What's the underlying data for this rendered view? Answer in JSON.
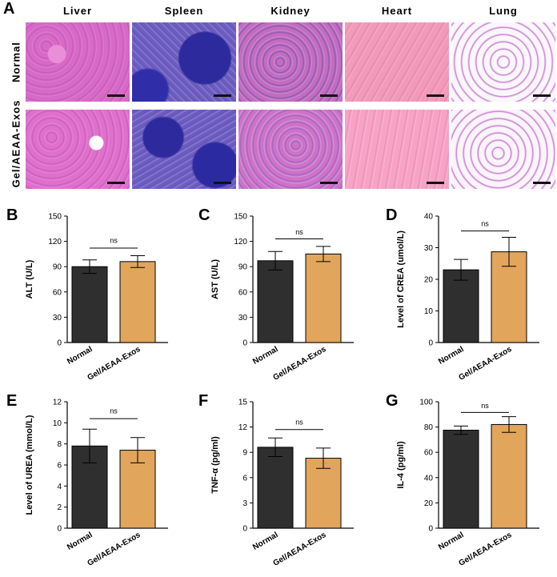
{
  "panel_labels": [
    "A",
    "B",
    "C",
    "D",
    "E",
    "F",
    "G"
  ],
  "histology": {
    "organs": [
      "Liver",
      "Spleen",
      "Kidney",
      "Heart",
      "Lung"
    ],
    "rows": [
      "Normal",
      "Gel/AEAA-Exos"
    ],
    "tile_colors": {
      "Liver": "#d970c8",
      "Spleen": "#5a4fb8",
      "Kidney": "#c873c4",
      "Heart": "#f08fb4",
      "Lung": "#f3e9f3"
    }
  },
  "colors": {
    "normal": "#2f2f2f",
    "treated": "#e2a55c"
  },
  "chart_data": [
    {
      "type": "bar",
      "panel": "B",
      "categories": [
        "Normal",
        "Gel/AEAA-Exos"
      ],
      "values": [
        90,
        96
      ],
      "errors": [
        8,
        7
      ],
      "ylabel": "ALT (U/L)",
      "ylim": [
        0,
        150
      ],
      "ticks": [
        0,
        30,
        60,
        90,
        120,
        150
      ],
      "annotation": "ns",
      "sig_y": 112,
      "sig_label_y": 118
    },
    {
      "type": "bar",
      "panel": "C",
      "categories": [
        "Normal",
        "Gel/AEAA-Exos"
      ],
      "values": [
        97,
        105
      ],
      "errors": [
        11,
        9
      ],
      "ylabel": "AST (U/L)",
      "ylim": [
        0,
        150
      ],
      "ticks": [
        0,
        30,
        60,
        90,
        120,
        150
      ],
      "annotation": "ns",
      "sig_y": 123,
      "sig_label_y": 128
    },
    {
      "type": "bar",
      "panel": "D",
      "categories": [
        "Normal",
        "Gel/AEAA-Exos"
      ],
      "values": [
        23,
        28.7
      ],
      "errors": [
        3.3,
        4.6
      ],
      "ylabel": "Level of CREA (umol/L)",
      "ylim": [
        0,
        40
      ],
      "ticks": [
        0,
        10,
        20,
        30,
        40
      ],
      "annotation": "ns",
      "sig_y": 35.3,
      "sig_label_y": 36.8
    },
    {
      "type": "bar",
      "panel": "E",
      "categories": [
        "Normal",
        "Gel/AEAA-Exos"
      ],
      "values": [
        7.8,
        7.4
      ],
      "errors": [
        1.6,
        1.2
      ],
      "ylabel": "Level of UREA (mmol/L)",
      "ylim": [
        0,
        12
      ],
      "ticks": [
        0,
        2,
        4,
        6,
        8,
        10,
        12
      ],
      "annotation": "ns",
      "sig_y": 10.4,
      "sig_label_y": 10.9
    },
    {
      "type": "bar",
      "panel": "F",
      "categories": [
        "Normal",
        "Gel/AEAA-Exos"
      ],
      "values": [
        9.6,
        8.3
      ],
      "errors": [
        1.1,
        1.2
      ],
      "ylabel": "TNF-α (pg/ml)",
      "ylim": [
        0,
        15
      ],
      "ticks": [
        0,
        3,
        6,
        9,
        12,
        15
      ],
      "annotation": "ns",
      "sig_y": 11.7,
      "sig_label_y": 12.3
    },
    {
      "type": "bar",
      "panel": "G",
      "categories": [
        "Normal",
        "Gel/AEAA-Exos"
      ],
      "values": [
        77.5,
        82
      ],
      "errors": [
        3.3,
        6.2
      ],
      "ylabel": "IL-4 (pg/ml)",
      "ylim": [
        0,
        100
      ],
      "ticks": [
        0,
        20,
        40,
        60,
        80,
        100
      ],
      "annotation": "ns",
      "sig_y": 91.5,
      "sig_label_y": 95
    }
  ]
}
